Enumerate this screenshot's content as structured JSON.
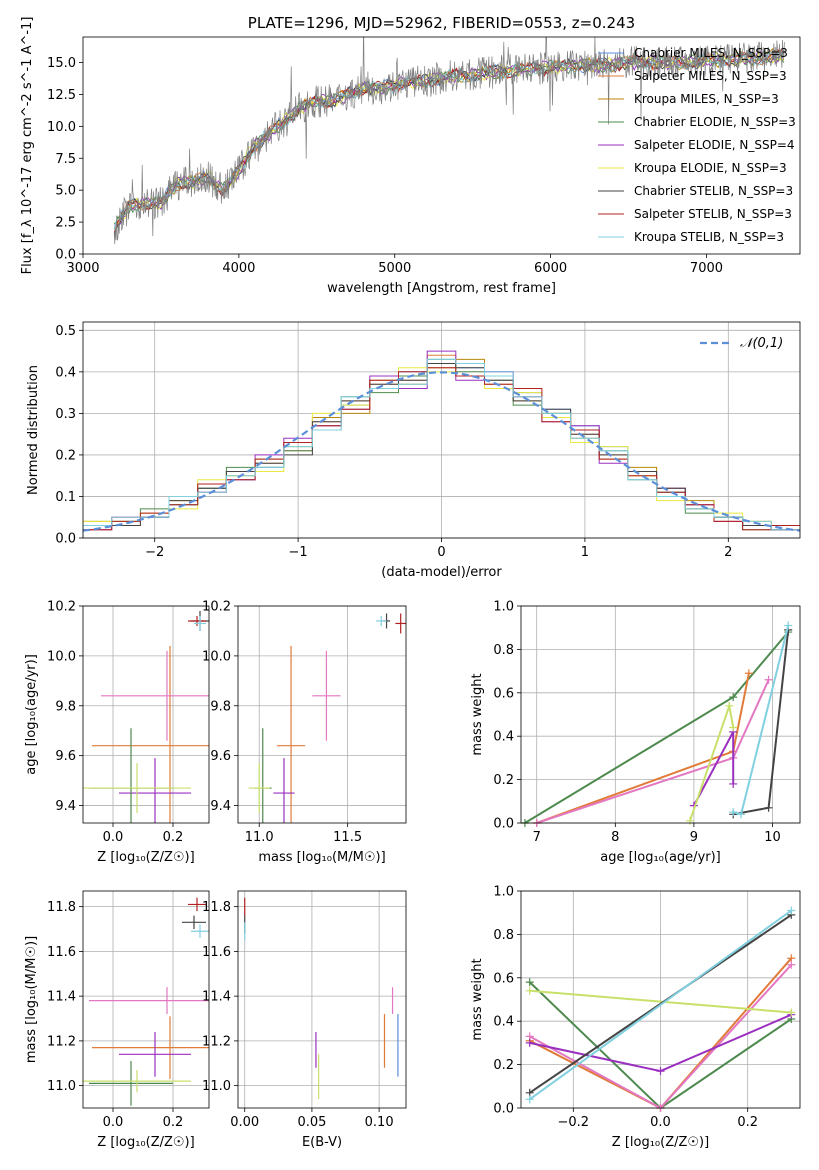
{
  "chart_data": [
    {
      "type": "line",
      "title": "PLATE=1296, MJD=52962, FIBERID=0553, z=0.243",
      "xlabel": "wavelength [Angstrom, rest frame]",
      "ylabel": "Flux [f_λ 10^-17 erg cm^-2 s^-1 A^-1]",
      "xlim": [
        3000,
        7600
      ],
      "ylim": [
        0,
        17
      ],
      "xticks": [
        "3000",
        "4000",
        "5000",
        "6000",
        "7000"
      ],
      "yticks": [
        "0.0",
        "2.5",
        "5.0",
        "7.5",
        "10.0",
        "12.5",
        "15.0"
      ],
      "data_x": [
        3200,
        3300,
        3400,
        3500,
        3600,
        3700,
        3800,
        3900,
        4000,
        4100,
        4200,
        4300,
        4400,
        4500,
        4600,
        4700,
        4800,
        4900,
        5000,
        5100,
        5200,
        5300,
        5400,
        5500,
        5600,
        5700,
        5800,
        5900,
        6000,
        6100,
        6200,
        6300,
        6400,
        6500,
        6600,
        6700,
        6800,
        6900,
        7000,
        7100,
        7200,
        7300,
        7400
      ],
      "data_y": [
        2.0,
        3.8,
        4.0,
        4.0,
        5.5,
        5.6,
        6.0,
        5.0,
        6.5,
        8.5,
        9.5,
        10.5,
        11.5,
        12.0,
        12.0,
        12.5,
        13.0,
        13.0,
        13.2,
        13.5,
        13.5,
        13.8,
        14.0,
        14.0,
        14.2,
        14.3,
        14.5,
        14.5,
        14.6,
        14.7,
        14.8,
        14.8,
        14.8,
        15.0,
        15.0,
        15.0,
        15.0,
        15.0,
        15.2,
        15.2,
        15.3,
        15.3,
        15.5
      ],
      "model_colors": [
        "#5b8fd8",
        "#e07b39",
        "#b8860b",
        "#4e8a4e",
        "#9b30c0",
        "#e8e840",
        "#444444",
        "#b22222",
        "#80d0e0"
      ],
      "legend": [
        {
          "label": "Chabrier MILES, N_SSP=3",
          "color": "#5b8fd8"
        },
        {
          "label": "Salpeter MILES, N_SSP=3",
          "color": "#e07b39"
        },
        {
          "label": "Kroupa MILES, N_SSP=3",
          "color": "#b8860b"
        },
        {
          "label": "Chabrier ELODIE, N_SSP=3",
          "color": "#4e8a4e"
        },
        {
          "label": "Salpeter ELODIE, N_SSP=4",
          "color": "#9b30c0"
        },
        {
          "label": "Kroupa ELODIE, N_SSP=3",
          "color": "#e8e840"
        },
        {
          "label": "Chabrier STELIB, N_SSP=3",
          "color": "#444444"
        },
        {
          "label": "Salpeter STELIB, N_SSP=3",
          "color": "#b22222"
        },
        {
          "label": "Kroupa STELIB, N_SSP=3",
          "color": "#80d0e0"
        }
      ],
      "legend_placement": "top-right",
      "grid": false
    },
    {
      "type": "line",
      "xlabel": "(data-model)/error",
      "ylabel": "Normed distribution",
      "xlim": [
        -2.5,
        2.5
      ],
      "ylim": [
        0,
        0.52
      ],
      "xticks": [
        "−2",
        "−1",
        "0",
        "1",
        "2"
      ],
      "yticks": [
        "0.0",
        "0.1",
        "0.2",
        "0.3",
        "0.4",
        "0.5"
      ],
      "reference_label": "𝒩(0,1)",
      "reference_color": "#5b8fd8",
      "legend_placement": "top-right",
      "grid": true,
      "bin_edges": [
        -2.5,
        -2.3,
        -2.1,
        -1.9,
        -1.7,
        -1.5,
        -1.3,
        -1.1,
        -0.9,
        -0.7,
        -0.5,
        -0.3,
        -0.1,
        0.1,
        0.3,
        0.5,
        0.7,
        0.9,
        1.1,
        1.3,
        1.5,
        1.7,
        1.9,
        2.1,
        2.3,
        2.5
      ],
      "series": [
        {
          "values": [
            0.03,
            0.04,
            0.05,
            0.08,
            0.12,
            0.14,
            0.17,
            0.22,
            0.27,
            0.32,
            0.36,
            0.4,
            0.42,
            0.41,
            0.4,
            0.35,
            0.31,
            0.27,
            0.22,
            0.16,
            0.11,
            0.08,
            0.05,
            0.03,
            0.02
          ]
        },
        {
          "values": [
            0.02,
            0.05,
            0.06,
            0.1,
            0.11,
            0.15,
            0.18,
            0.21,
            0.28,
            0.33,
            0.37,
            0.38,
            0.44,
            0.39,
            0.36,
            0.34,
            0.29,
            0.25,
            0.2,
            0.15,
            0.12,
            0.07,
            0.04,
            0.03,
            0.02
          ]
        },
        {
          "values": [
            0.04,
            0.03,
            0.05,
            0.09,
            0.13,
            0.16,
            0.19,
            0.23,
            0.29,
            0.3,
            0.38,
            0.37,
            0.41,
            0.43,
            0.37,
            0.33,
            0.3,
            0.24,
            0.19,
            0.17,
            0.1,
            0.09,
            0.05,
            0.04,
            0.03
          ]
        },
        {
          "values": [
            0.03,
            0.04,
            0.07,
            0.08,
            0.12,
            0.17,
            0.17,
            0.21,
            0.26,
            0.34,
            0.35,
            0.39,
            0.43,
            0.4,
            0.38,
            0.32,
            0.3,
            0.26,
            0.21,
            0.14,
            0.11,
            0.06,
            0.05,
            0.02,
            0.03
          ]
        },
        {
          "values": [
            0.02,
            0.05,
            0.05,
            0.1,
            0.11,
            0.14,
            0.2,
            0.24,
            0.27,
            0.31,
            0.39,
            0.36,
            0.45,
            0.38,
            0.39,
            0.34,
            0.28,
            0.27,
            0.18,
            0.16,
            0.12,
            0.08,
            0.04,
            0.03,
            0.02
          ]
        },
        {
          "values": [
            0.04,
            0.04,
            0.06,
            0.07,
            0.14,
            0.15,
            0.16,
            0.22,
            0.3,
            0.32,
            0.36,
            0.41,
            0.4,
            0.42,
            0.36,
            0.35,
            0.29,
            0.23,
            0.22,
            0.15,
            0.09,
            0.07,
            0.06,
            0.04,
            0.03
          ]
        },
        {
          "values": [
            0.03,
            0.03,
            0.05,
            0.09,
            0.12,
            0.16,
            0.18,
            0.2,
            0.28,
            0.33,
            0.37,
            0.38,
            0.42,
            0.41,
            0.38,
            0.33,
            0.31,
            0.25,
            0.2,
            0.16,
            0.12,
            0.07,
            0.05,
            0.03,
            0.02
          ]
        },
        {
          "values": [
            0.02,
            0.04,
            0.06,
            0.08,
            0.13,
            0.14,
            0.19,
            0.23,
            0.27,
            0.31,
            0.38,
            0.4,
            0.41,
            0.39,
            0.37,
            0.36,
            0.28,
            0.26,
            0.19,
            0.15,
            0.11,
            0.08,
            0.04,
            0.02,
            0.03
          ]
        },
        {
          "values": [
            0.03,
            0.05,
            0.05,
            0.1,
            0.11,
            0.15,
            0.17,
            0.22,
            0.26,
            0.34,
            0.36,
            0.37,
            0.43,
            0.42,
            0.39,
            0.34,
            0.3,
            0.24,
            0.21,
            0.14,
            0.1,
            0.07,
            0.05,
            0.04,
            0.02
          ]
        }
      ]
    },
    {
      "type": "scatter",
      "xlabel": "Z [log₁₀(Z/Z☉)]",
      "ylabel": "age  [log₁₀(age/yr)]",
      "xlim": [
        -0.1,
        0.32
      ],
      "ylim": [
        9.33,
        10.2
      ],
      "xticks": [
        "0.0",
        "0.2"
      ],
      "yticks": [
        "9.4",
        "9.6",
        "9.8",
        "10.0",
        "10.2"
      ],
      "grid": true,
      "points": [
        {
          "x": 0.29,
          "y": 10.14,
          "xerr": 0.03,
          "yerr": 0.04,
          "color": "#444444"
        },
        {
          "x": 0.28,
          "y": 10.14,
          "xerr": 0.03,
          "yerr": 0.02,
          "color": "#b22222"
        },
        {
          "x": 0.29,
          "y": 10.13,
          "xerr": 0.02,
          "yerr": 0.03,
          "color": "#80d0e0"
        },
        {
          "x": 0.19,
          "y": 9.64,
          "xerr": 0.26,
          "yerr": 0.4,
          "color": "#e07b39"
        },
        {
          "x": 0.18,
          "y": 9.84,
          "xerr": 0.22,
          "yerr": 0.18,
          "color": "#e377c2"
        },
        {
          "x": 0.14,
          "y": 9.45,
          "xerr": 0.12,
          "yerr": 0.14,
          "color": "#9b30c0"
        },
        {
          "x": 0.06,
          "y": 9.47,
          "xerr": 0.14,
          "yerr": 0.24,
          "color": "#4e8a4e"
        },
        {
          "x": 0.08,
          "y": 9.47,
          "xerr": 0.18,
          "yerr": 0.1,
          "color": "#c8e06a"
        }
      ]
    },
    {
      "type": "scatter",
      "xlabel": "mass [log₁₀(M/M☉)]",
      "ylabel": "",
      "xlim": [
        10.88,
        11.83
      ],
      "ylim": [
        9.33,
        10.2
      ],
      "xticks": [
        "11.0",
        "11.5"
      ],
      "yticks": [
        "9.4",
        "9.6",
        "9.8",
        "10.0",
        "10.2"
      ],
      "grid": true,
      "points": [
        {
          "x": 11.72,
          "y": 10.14,
          "xerr": 0.02,
          "yerr": 0.03,
          "color": "#444444"
        },
        {
          "x": 11.8,
          "y": 10.13,
          "xerr": 0.03,
          "yerr": 0.04,
          "color": "#b22222"
        },
        {
          "x": 11.69,
          "y": 10.14,
          "xerr": 0.03,
          "yerr": 0.02,
          "color": "#80d0e0"
        },
        {
          "x": 11.38,
          "y": 9.84,
          "xerr": 0.08,
          "yerr": 0.18,
          "color": "#e377c2"
        },
        {
          "x": 11.18,
          "y": 9.64,
          "xerr": 0.08,
          "yerr": 0.4,
          "color": "#e07b39"
        },
        {
          "x": 11.14,
          "y": 9.45,
          "xerr": 0.06,
          "yerr": 0.14,
          "color": "#9b30c0"
        },
        {
          "x": 11.02,
          "y": 9.47,
          "xerr": 0.05,
          "yerr": 0.24,
          "color": "#4e8a4e"
        },
        {
          "x": 11.0,
          "y": 9.47,
          "xerr": 0.06,
          "yerr": 0.1,
          "color": "#c8e06a"
        }
      ]
    },
    {
      "type": "line",
      "xlabel": "age  [log₁₀(age/yr)]",
      "ylabel": "mass weight",
      "xlim": [
        6.8,
        10.35
      ],
      "ylim": [
        0,
        1.0
      ],
      "xticks": [
        "7",
        "8",
        "9",
        "10"
      ],
      "yticks": [
        "0.0",
        "0.2",
        "0.4",
        "0.6",
        "0.8",
        "1.0"
      ],
      "grid": true,
      "series": [
        {
          "color": "#4e8a4e",
          "x": [
            6.85,
            9.5,
            10.2
          ],
          "y": [
            0.0,
            0.58,
            0.88
          ]
        },
        {
          "color": "#e07b39",
          "x": [
            7.0,
            9.5,
            9.7
          ],
          "y": [
            0.0,
            0.33,
            0.69
          ]
        },
        {
          "color": "#e377c2",
          "x": [
            7.0,
            9.5,
            9.95
          ],
          "y": [
            0.0,
            0.3,
            0.66
          ]
        },
        {
          "color": "#9b30c0",
          "x": [
            9.0,
            9.5,
            9.5
          ],
          "y": [
            0.08,
            0.42,
            0.18
          ]
        },
        {
          "color": "#c8e06a",
          "x": [
            8.95,
            9.45,
            9.5
          ],
          "y": [
            0.01,
            0.54,
            0.44
          ]
        },
        {
          "color": "#444444",
          "x": [
            9.5,
            9.95,
            10.2
          ],
          "y": [
            0.04,
            0.07,
            0.89
          ]
        },
        {
          "color": "#80d0e0",
          "x": [
            9.5,
            9.6,
            10.2
          ],
          "y": [
            0.05,
            0.04,
            0.91
          ]
        }
      ]
    },
    {
      "type": "scatter",
      "xlabel": "Z [log₁₀(Z/Z☉)]",
      "ylabel": "mass [log₁₀(M/M☉)]",
      "xlim": [
        -0.1,
        0.32
      ],
      "ylim": [
        10.9,
        11.87
      ],
      "xticks": [
        "0.0",
        "0.2"
      ],
      "yticks": [
        "11.0",
        "11.2",
        "11.4",
        "11.6",
        "11.8"
      ],
      "grid": true,
      "points": [
        {
          "x": 0.28,
          "y": 11.81,
          "xerr": 0.03,
          "yerr": 0.03,
          "color": "#b22222"
        },
        {
          "x": 0.27,
          "y": 11.73,
          "xerr": 0.04,
          "yerr": 0.03,
          "color": "#444444"
        },
        {
          "x": 0.29,
          "y": 11.69,
          "xerr": 0.03,
          "yerr": 0.03,
          "color": "#80d0e0"
        },
        {
          "x": 0.18,
          "y": 11.38,
          "xerr": 0.26,
          "yerr": 0.06,
          "color": "#e377c2"
        },
        {
          "x": 0.19,
          "y": 11.17,
          "xerr": 0.26,
          "yerr": 0.14,
          "color": "#e07b39"
        },
        {
          "x": 0.14,
          "y": 11.14,
          "xerr": 0.12,
          "yerr": 0.1,
          "color": "#9b30c0"
        },
        {
          "x": 0.06,
          "y": 11.01,
          "xerr": 0.14,
          "yerr": 0.1,
          "color": "#4e8a4e"
        },
        {
          "x": 0.08,
          "y": 11.02,
          "xerr": 0.18,
          "yerr": 0.05,
          "color": "#c8e06a"
        }
      ]
    },
    {
      "type": "scatter",
      "xlabel": "E(B-V)",
      "ylabel": "",
      "xlim": [
        -0.005,
        0.12
      ],
      "ylim": [
        10.9,
        11.87
      ],
      "xticks": [
        "0.00",
        "0.05",
        "0.10"
      ],
      "yticks": [
        "11.0",
        "11.2",
        "11.4",
        "11.6",
        "11.8"
      ],
      "grid": true,
      "points": [
        {
          "x": 0.0,
          "y": 11.8,
          "yerr": 0.04,
          "color": "#b22222"
        },
        {
          "x": 0.0,
          "y": 11.72,
          "yerr": 0.04,
          "color": "#444444"
        },
        {
          "x": 0.0,
          "y": 11.69,
          "yerr": 0.04,
          "color": "#80d0e0"
        },
        {
          "x": 0.11,
          "y": 11.38,
          "yerr": 0.06,
          "color": "#e377c2"
        },
        {
          "x": 0.104,
          "y": 11.2,
          "yerr": 0.12,
          "color": "#e07b39"
        },
        {
          "x": 0.114,
          "y": 11.18,
          "yerr": 0.14,
          "color": "#5b8fd8"
        },
        {
          "x": 0.053,
          "y": 11.16,
          "yerr": 0.08,
          "color": "#9b30c0"
        },
        {
          "x": 0.055,
          "y": 11.04,
          "yerr": 0.1,
          "color": "#c8e06a"
        }
      ]
    },
    {
      "type": "line",
      "xlabel": "Z [log₁₀(Z/Z☉)]",
      "ylabel": "mass weight",
      "xlim": [
        -0.32,
        0.32
      ],
      "ylim": [
        0,
        1.0
      ],
      "xticks": [
        "−0.2",
        "0.0",
        "0.2"
      ],
      "yticks": [
        "0.0",
        "0.2",
        "0.4",
        "0.6",
        "0.8",
        "1.0"
      ],
      "grid": true,
      "series": [
        {
          "color": "#4e8a4e",
          "x": [
            -0.3,
            0.0,
            0.3
          ],
          "y": [
            0.58,
            0.0,
            0.41
          ]
        },
        {
          "color": "#e07b39",
          "x": [
            -0.3,
            0.0,
            0.3
          ],
          "y": [
            0.31,
            0.0,
            0.69
          ]
        },
        {
          "color": "#e377c2",
          "x": [
            -0.3,
            0.0,
            0.3
          ],
          "y": [
            0.33,
            0.0,
            0.66
          ]
        },
        {
          "color": "#9b30c0",
          "x": [
            -0.3,
            0.0,
            0.3
          ],
          "y": [
            0.3,
            0.17,
            0.43
          ]
        },
        {
          "color": "#c8e06a",
          "x": [
            -0.3,
            0.3
          ],
          "y": [
            0.54,
            0.44
          ]
        },
        {
          "color": "#444444",
          "x": [
            -0.3,
            0.3
          ],
          "y": [
            0.07,
            0.89
          ]
        },
        {
          "color": "#80d0e0",
          "x": [
            -0.3,
            0.3
          ],
          "y": [
            0.04,
            0.91
          ]
        }
      ]
    }
  ]
}
